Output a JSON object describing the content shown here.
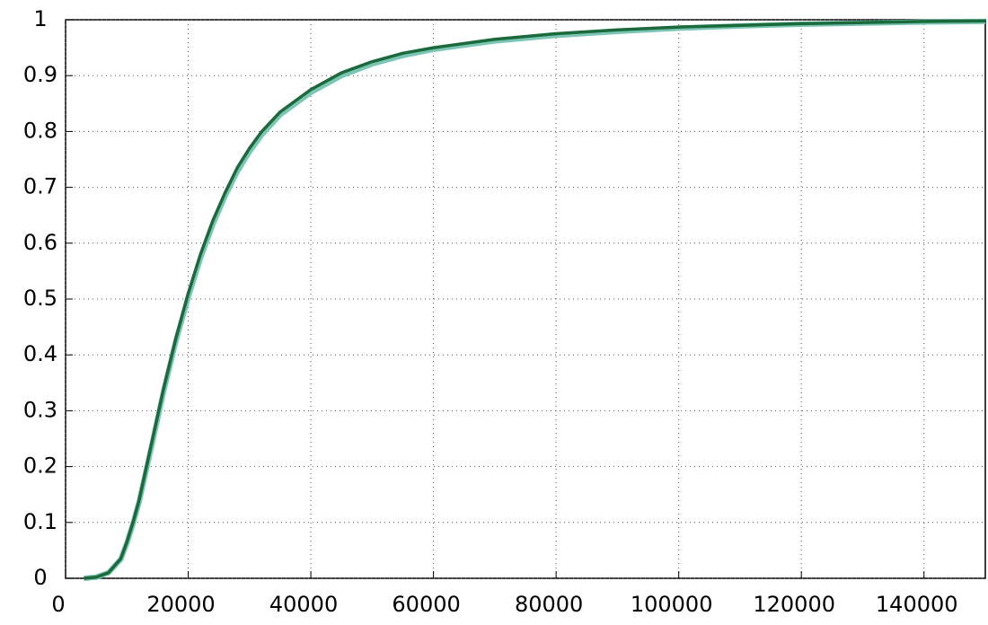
{
  "chart_data": {
    "type": "line",
    "x": [
      3000,
      5000,
      7000,
      9000,
      10000,
      11000,
      12000,
      14000,
      16000,
      18000,
      20000,
      22000,
      24000,
      26000,
      28000,
      30000,
      32000,
      35000,
      40000,
      45000,
      50000,
      55000,
      60000,
      70000,
      80000,
      90000,
      100000,
      110000,
      120000,
      130000,
      140000,
      150000
    ],
    "series": [
      {
        "color": "#7cc4b4",
        "values": [
          0,
          0.002,
          0.01,
          0.034,
          0.063,
          0.098,
          0.137,
          0.235,
          0.335,
          0.425,
          0.503,
          0.573,
          0.633,
          0.684,
          0.728,
          0.764,
          0.794,
          0.83,
          0.87,
          0.9,
          0.921,
          0.936,
          0.947,
          0.962,
          0.972,
          0.979,
          0.985,
          0.989,
          0.992,
          0.994,
          0.996,
          0.997
        ]
      },
      {
        "color": "#1a6a3c",
        "values": [
          0,
          0.002,
          0.01,
          0.035,
          0.065,
          0.1,
          0.14,
          0.24,
          0.34,
          0.43,
          0.51,
          0.58,
          0.64,
          0.69,
          0.735,
          0.77,
          0.8,
          0.835,
          0.875,
          0.905,
          0.925,
          0.94,
          0.95,
          0.965,
          0.975,
          0.982,
          0.987,
          0.99,
          0.993,
          0.995,
          0.997,
          0.998
        ]
      }
    ],
    "xlim": [
      0,
      150000
    ],
    "xticks": [
      0,
      20000,
      40000,
      60000,
      80000,
      100000,
      120000,
      140000
    ],
    "ylim": [
      0,
      1
    ],
    "yticks": [
      0,
      0.1,
      0.2,
      0.3,
      0.4,
      0.5,
      0.6,
      0.7,
      0.8,
      0.9,
      1
    ],
    "grid": true
  }
}
